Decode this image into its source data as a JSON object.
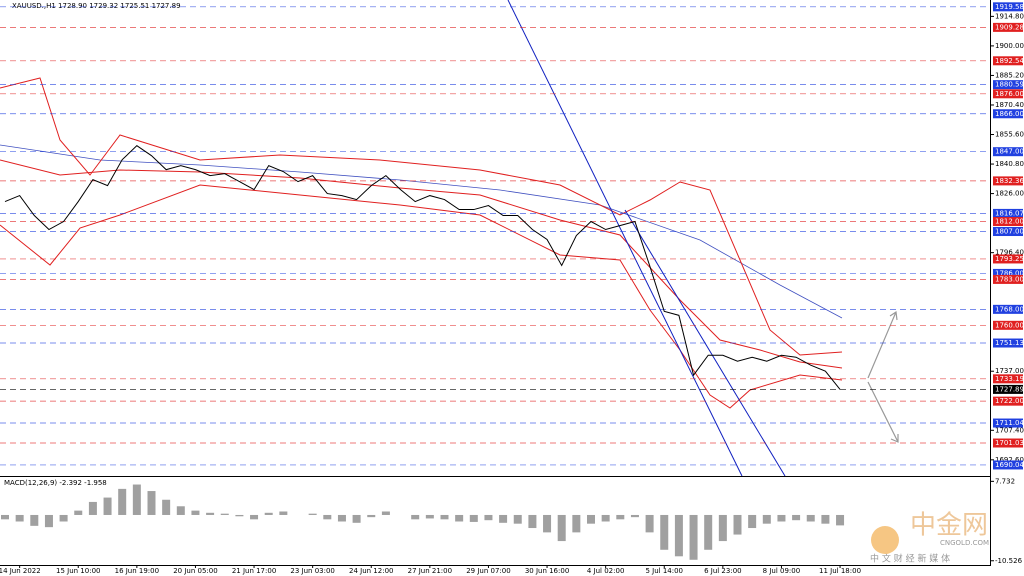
{
  "header": {
    "symbol_line": "XAUUSD.,H1  1728.90 1729.32 1725.51 1727.89"
  },
  "chart_data": {
    "type": "line",
    "color": "#000000",
    "categories": [
      null,
      "14 Jun 2022",
      null,
      null,
      null,
      "15 Jun 10:00",
      null,
      null,
      null,
      "16 Jun 19:00",
      null,
      null,
      null,
      "20 Jun 05:00",
      null,
      null,
      null,
      "21 Jun 17:00",
      null,
      null,
      null,
      "23 Jun 03:00",
      null,
      null,
      null,
      "24 Jun 12:00",
      null,
      null,
      null,
      "27 Jun 21:00",
      null,
      null,
      null,
      "29 Jun 07:00",
      null,
      null,
      null,
      "30 Jun 16:00",
      null,
      null,
      null,
      "4 Jul 02:00",
      null,
      null,
      null,
      "5 Jul 14:00",
      null,
      null,
      null,
      "6 Jul 23:00",
      null,
      null,
      null,
      "8 Jul 09:00",
      null,
      null,
      null,
      "11 Jul 18:00"
    ],
    "values": [
      1822,
      1825,
      1815,
      1808,
      1812,
      1822,
      1833,
      1830,
      1843,
      1850,
      1845,
      1838,
      1840,
      1838,
      1835,
      1836,
      1832,
      1828,
      1840,
      1837,
      1832,
      1835,
      1826,
      1825,
      1823,
      1830,
      1835,
      1828,
      1822,
      1825,
      1823,
      1818,
      1818,
      1820,
      1815,
      1815,
      1808,
      1803,
      1790,
      1805,
      1812,
      1808,
      1810,
      1812,
      1790,
      1767,
      1765,
      1735,
      1745,
      1745,
      1742,
      1744,
      1742,
      1745,
      1744,
      1740,
      1737,
      1727.89
    ],
    "ylim": [
      1685,
      1923
    ],
    "yticks": [
      {
        "value": 1914.8,
        "label": "1914.80"
      },
      {
        "value": 1900,
        "label": "1900.00"
      },
      {
        "value": 1885.2,
        "label": "1885.20"
      },
      {
        "value": 1870.4,
        "label": "1870.40"
      },
      {
        "value": 1855.6,
        "label": "1855.60"
      },
      {
        "value": 1840.8,
        "label": "1840.80"
      },
      {
        "value": 1826,
        "label": "1826.00"
      },
      {
        "value": 1796.4,
        "label": "1796.40"
      },
      {
        "value": 1737,
        "label": "1737.00"
      },
      {
        "value": 1707.4,
        "label": "1707.40"
      },
      {
        "value": 1692.6,
        "label": "1692.60"
      }
    ],
    "levels": [
      {
        "value": 1919.58,
        "label": "1919.58",
        "color": "#2040e0"
      },
      {
        "value": 1909.28,
        "label": "1909.28",
        "color": "#e02020"
      },
      {
        "value": 1892.54,
        "label": "1892.54",
        "color": "#e02020"
      },
      {
        "value": 1880.59,
        "label": "1880.59",
        "color": "#2040e0"
      },
      {
        "value": 1876,
        "label": "1876.00",
        "color": "#e02020"
      },
      {
        "value": 1866,
        "label": "1866.00",
        "color": "#2040e0"
      },
      {
        "value": 1847,
        "label": "1847.00",
        "color": "#2040e0"
      },
      {
        "value": 1832.36,
        "label": "1832.36",
        "color": "#e02020"
      },
      {
        "value": 1816.07,
        "label": "1816.07",
        "color": "#2040e0"
      },
      {
        "value": 1812,
        "label": "1812.00",
        "color": "#e02020"
      },
      {
        "value": 1807,
        "label": "1807.00",
        "color": "#2040e0"
      },
      {
        "value": 1793.25,
        "label": "1793.25",
        "color": "#e02020"
      },
      {
        "value": 1786,
        "label": "1786.00",
        "color": "#2040e0"
      },
      {
        "value": 1783,
        "label": "1783.00",
        "color": "#e02020"
      },
      {
        "value": 1768,
        "label": "1768.00",
        "color": "#2040e0"
      },
      {
        "value": 1760,
        "label": "1760.00",
        "color": "#e02020"
      },
      {
        "value": 1751.13,
        "label": "1751.13",
        "color": "#2040e0"
      },
      {
        "value": 1733.19,
        "label": "1733.19",
        "color": "#e02020"
      },
      {
        "value": 1727.89,
        "label": "1727.89",
        "color": "#000000"
      },
      {
        "value": 1722,
        "label": "1722.00",
        "color": "#e02020"
      },
      {
        "value": 1711.04,
        "label": "1711.04",
        "color": "#2040e0"
      },
      {
        "value": 1701.03,
        "label": "1701.03",
        "color": "#e02020"
      },
      {
        "value": 1690.04,
        "label": "1690.04",
        "color": "#2040e0"
      }
    ],
    "macd": {
      "title": "MACD(12,26,9) -2.392 -1.958",
      "color": "#a0a0a0",
      "values": [
        -1,
        -1.5,
        -2.5,
        -2.8,
        -1.5,
        1,
        3,
        4,
        6,
        7,
        5.5,
        3.5,
        2,
        1,
        0.5,
        0.3,
        -0.3,
        -1,
        0.5,
        0.8,
        0,
        0.3,
        -1,
        -1.5,
        -1.8,
        -0.5,
        0.8,
        0,
        -1,
        -0.8,
        -1,
        -1.5,
        -1.6,
        -1.2,
        -1.8,
        -2,
        -3,
        -4,
        -6,
        -4,
        -2,
        -1.5,
        -1,
        -0.5,
        -4,
        -8,
        -9.5,
        -10.3,
        -8,
        -6,
        -4.5,
        -3,
        -2,
        -1.5,
        -1.2,
        -1.5,
        -2,
        -2.392
      ],
      "ylim": [
        -11.5,
        8.5
      ],
      "yticks": [
        7.732,
        -10.526
      ]
    }
  },
  "watermark": {
    "brand": "中金网",
    "site": "CNGOLD.COM",
    "slogan": "中 文 财 经 新 媒 体"
  }
}
